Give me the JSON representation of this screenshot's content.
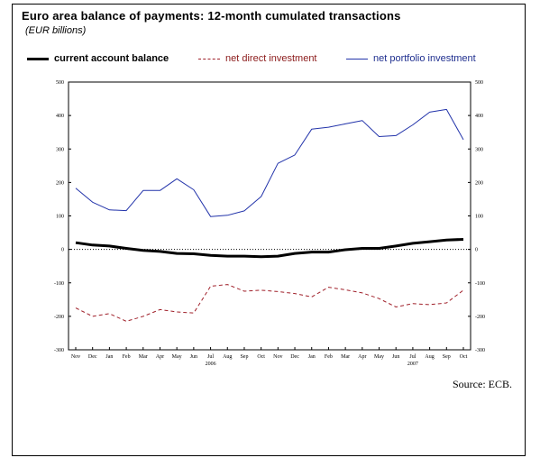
{
  "chart_data": {
    "type": "line",
    "title": "Euro area balance of payments: 12-month cumulated transactions",
    "subtitle": "(EUR billions)",
    "xlabel": "",
    "ylabel": "",
    "ylim": [
      -300,
      500
    ],
    "yticks": [
      500,
      400,
      300,
      200,
      100,
      0,
      -100,
      -200,
      -300
    ],
    "categories": [
      "Nov",
      "Dec",
      "Jan",
      "Feb",
      "Mar",
      "Apr",
      "May",
      "Jun",
      "Jul",
      "Aug",
      "Sep",
      "Oct",
      "Nov",
      "Dec",
      "Jan",
      "Feb",
      "Mar",
      "Apr",
      "May",
      "Jun",
      "Jul",
      "Aug",
      "Sep",
      "Oct"
    ],
    "year_labels": [
      {
        "label": "2006",
        "index": 8
      },
      {
        "label": "2007",
        "index": 20
      }
    ],
    "zero_line": "dotted",
    "legend_position": "top",
    "series": [
      {
        "name": "current account balance",
        "color": "#000000",
        "style": "solid-thick",
        "values": [
          20,
          13,
          10,
          3,
          -3,
          -6,
          -12,
          -13,
          -18,
          -20,
          -20,
          -22,
          -20,
          -12,
          -8,
          -8,
          -1,
          3,
          3,
          10,
          18,
          23,
          28,
          30
        ]
      },
      {
        "name": "net direct investment",
        "color": "#a0202a",
        "style": "dashed",
        "values": [
          -175,
          -200,
          -192,
          -215,
          -200,
          -180,
          -187,
          -190,
          -110,
          -105,
          -125,
          -122,
          -126,
          -132,
          -142,
          -113,
          -121,
          -130,
          -147,
          -172,
          -162,
          -165,
          -160,
          -122
        ]
      },
      {
        "name": "net portfolio investment",
        "color": "#2233aa",
        "style": "solid-thin",
        "values": [
          183,
          141,
          118,
          116,
          176,
          176,
          211,
          178,
          98,
          102,
          115,
          158,
          257,
          282,
          359,
          365,
          375,
          385,
          337,
          340,
          372,
          410,
          418,
          328
        ]
      }
    ]
  },
  "source": "Source: ECB."
}
